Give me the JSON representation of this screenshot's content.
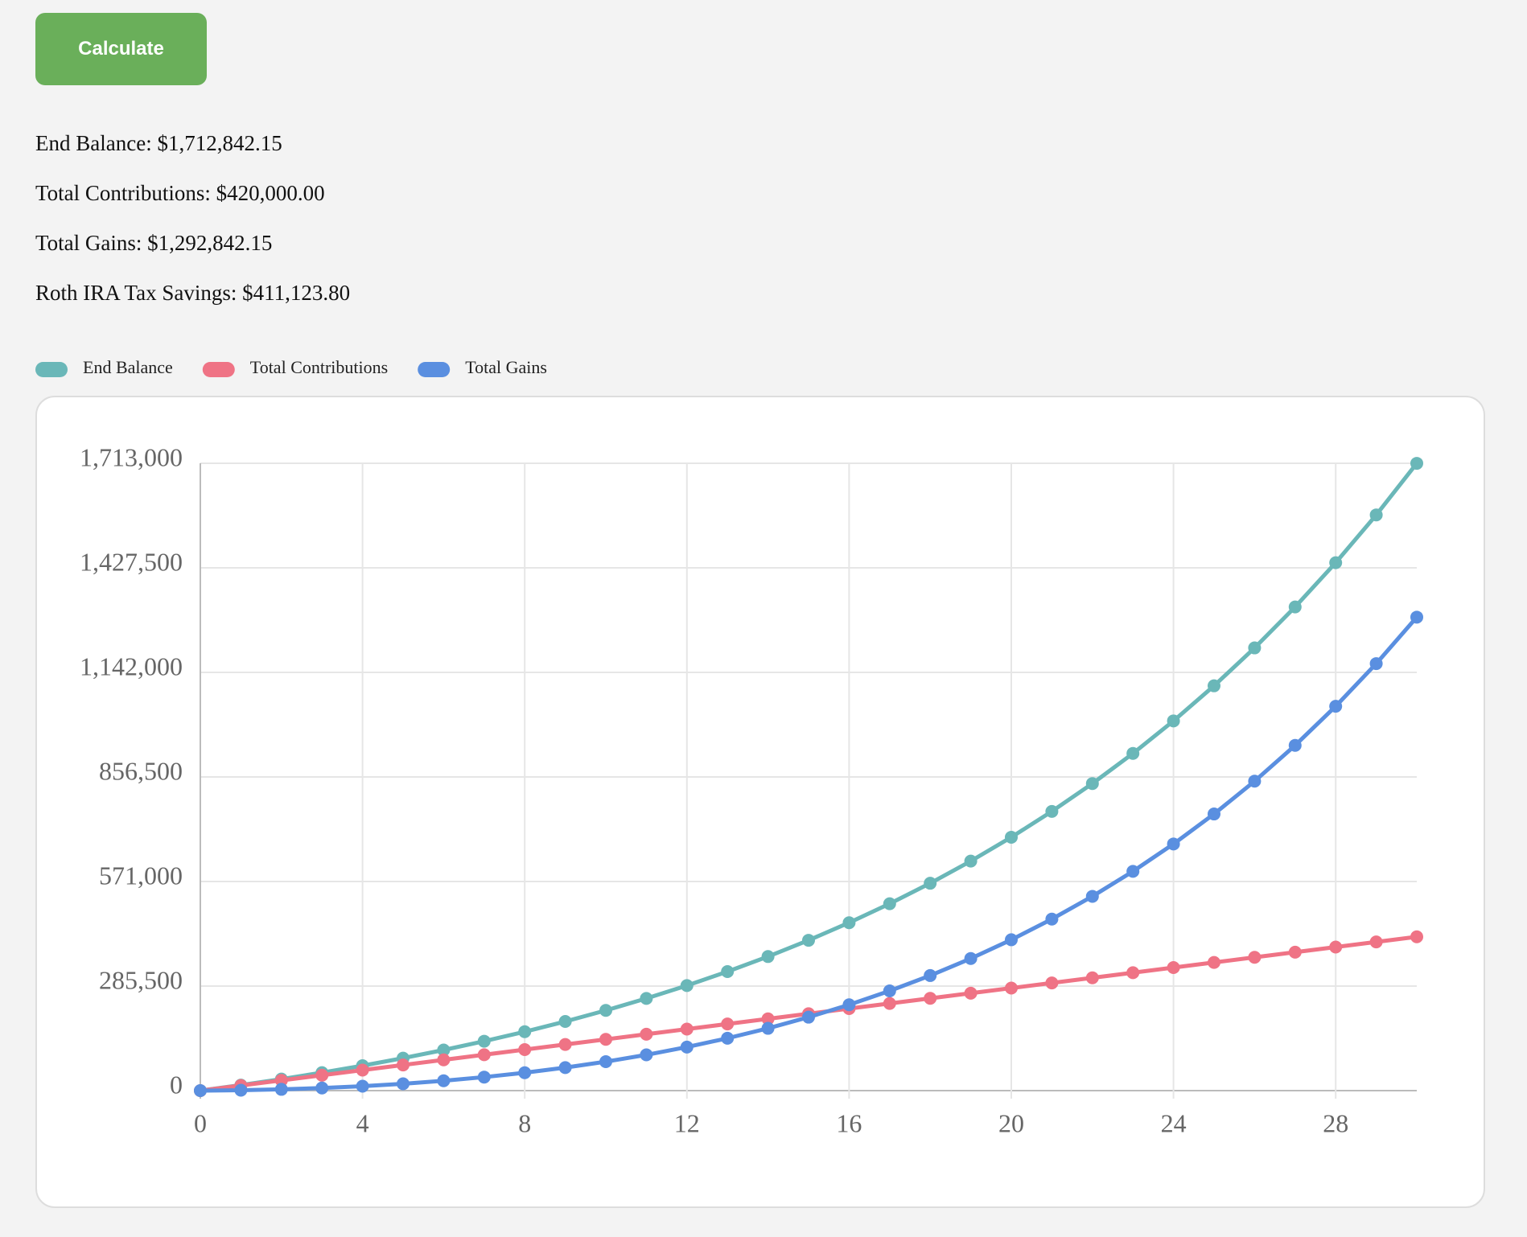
{
  "button": {
    "label": "Calculate"
  },
  "results": [
    "End Balance: $1,712,842.15",
    "Total Contributions: $420,000.00",
    "Total Gains: $1,292,842.15",
    "Roth IRA Tax Savings: $411,123.80"
  ],
  "chart_data": {
    "type": "line",
    "x": [
      0,
      1,
      2,
      3,
      4,
      5,
      6,
      7,
      8,
      9,
      10,
      11,
      12,
      13,
      14,
      15,
      16,
      17,
      18,
      19,
      20,
      21,
      22,
      23,
      24,
      25,
      26,
      27,
      28,
      29,
      30
    ],
    "series": [
      {
        "name": "End Balance",
        "color": "#6ab7b8",
        "values": [
          0,
          15120,
          31450,
          49086,
          68132,
          88703,
          110919,
          134913,
          160826,
          188812,
          219037,
          251680,
          286934,
          325009,
          366130,
          410540,
          458503,
          510303,
          566248,
          626668,
          691921,
          762395,
          838506,
          920707,
          1009483,
          1105362,
          1208911,
          1320744,
          1441523,
          1571965,
          1712842
        ]
      },
      {
        "name": "Total Contributions",
        "color": "#ef7385",
        "values": [
          0,
          14000,
          28000,
          42000,
          56000,
          70000,
          84000,
          98000,
          112000,
          126000,
          140000,
          154000,
          168000,
          182000,
          196000,
          210000,
          224000,
          238000,
          252000,
          266000,
          280000,
          294000,
          308000,
          322000,
          336000,
          350000,
          364000,
          378000,
          392000,
          406000,
          420000
        ]
      },
      {
        "name": "Total Gains",
        "color": "#5a8fe0",
        "values": [
          0,
          1120,
          3450,
          7086,
          12132,
          18703,
          26919,
          36913,
          48826,
          62812,
          79037,
          97680,
          118934,
          143009,
          170130,
          200540,
          234503,
          272303,
          314248,
          360668,
          411921,
          468395,
          530506,
          598707,
          673483,
          755362,
          844911,
          942744,
          1049523,
          1165965,
          1292842
        ]
      }
    ],
    "xlim": [
      0,
      30
    ],
    "xticks": [
      0,
      4,
      8,
      12,
      16,
      20,
      24,
      28
    ],
    "ylim": [
      0,
      1713000
    ],
    "yticks": [
      0,
      {
        "value": 285500,
        "label": "285,500"
      },
      {
        "value": 571000,
        "label": "571,000"
      },
      {
        "value": 856500,
        "label": "856,500"
      },
      {
        "value": 1142000,
        "label": "1,142,000"
      },
      {
        "value": 1427500,
        "label": "1,427,500"
      },
      {
        "value": 1713000,
        "label": "1,713,000"
      }
    ],
    "grid": true,
    "legend": "top-left"
  }
}
